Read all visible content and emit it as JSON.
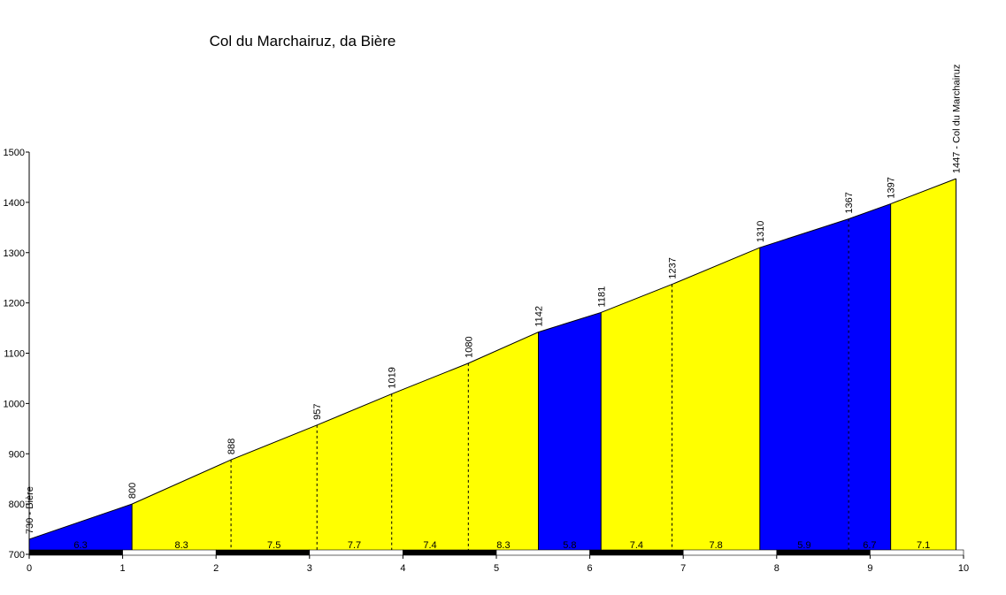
{
  "chart_data": {
    "type": "area",
    "title": "Col du Marchairuz, da Bière",
    "xlabel": "",
    "ylabel": "",
    "xlim": [
      0,
      10
    ],
    "ylim": [
      700,
      1500
    ],
    "x_ticks": [
      0,
      1,
      2,
      3,
      4,
      5,
      6,
      7,
      8,
      9,
      10
    ],
    "y_ticks": [
      700,
      800,
      900,
      1000,
      1100,
      1200,
      1300,
      1400,
      1500
    ],
    "grid": false,
    "points": [
      {
        "km": 0.0,
        "alt": 730,
        "label": "730 - Bière"
      },
      {
        "km": 1.1,
        "alt": 800,
        "label": "800"
      },
      {
        "km": 2.16,
        "alt": 888,
        "label": "888"
      },
      {
        "km": 3.08,
        "alt": 957,
        "label": "957"
      },
      {
        "km": 3.88,
        "alt": 1019,
        "label": "1019"
      },
      {
        "km": 4.7,
        "alt": 1080,
        "label": "1080"
      },
      {
        "km": 5.45,
        "alt": 1142,
        "label": "1142"
      },
      {
        "km": 6.12,
        "alt": 1181,
        "label": "1181"
      },
      {
        "km": 6.88,
        "alt": 1237,
        "label": "1237"
      },
      {
        "km": 7.82,
        "alt": 1310,
        "label": "1310"
      },
      {
        "km": 8.77,
        "alt": 1367,
        "label": "1367"
      },
      {
        "km": 9.22,
        "alt": 1397,
        "label": "1397"
      },
      {
        "km": 9.92,
        "alt": 1447,
        "label": "1447 - Col du Marchairuz"
      }
    ],
    "segments": [
      {
        "gradient": "6.3",
        "color": "#0000ff"
      },
      {
        "gradient": "8.3",
        "color": "#ffff00"
      },
      {
        "gradient": "7.5",
        "color": "#ffff00"
      },
      {
        "gradient": "7.7",
        "color": "#ffff00"
      },
      {
        "gradient": "7.4",
        "color": "#ffff00"
      },
      {
        "gradient": "8.3",
        "color": "#ffff00"
      },
      {
        "gradient": "5.8",
        "color": "#0000ff"
      },
      {
        "gradient": "7.4",
        "color": "#ffff00"
      },
      {
        "gradient": "7.8",
        "color": "#ffff00"
      },
      {
        "gradient": "5.9",
        "color": "#0000ff"
      },
      {
        "gradient": "6.7",
        "color": "#0000ff"
      },
      {
        "gradient": "7.1",
        "color": "#ffff00"
      }
    ]
  }
}
